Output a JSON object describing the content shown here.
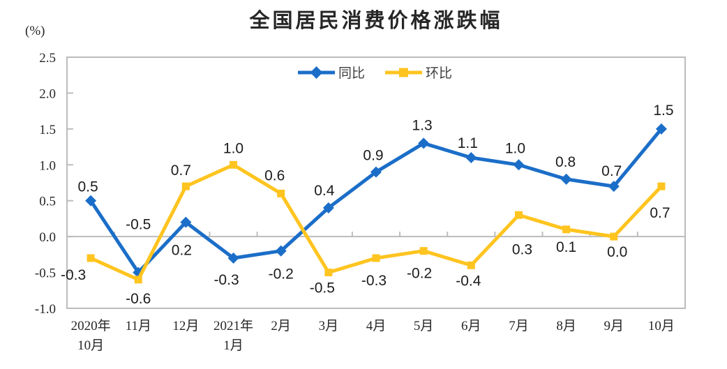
{
  "chart_data": {
    "type": "line",
    "title": "全国居民消费价格涨跌幅",
    "ylabel": "(%)",
    "xlabel": "",
    "ylim": [
      -1.0,
      2.5
    ],
    "y_ticks": [
      2.5,
      2.0,
      1.5,
      1.0,
      0.5,
      0.0,
      -0.5,
      -1.0
    ],
    "grid": false,
    "legend_position": "top-center",
    "axis_color": "#bcbcbc",
    "label_color": "#1c1c1c",
    "categories": [
      "2020年10月",
      "11月",
      "12月",
      "2021年1月",
      "2月",
      "3月",
      "4月",
      "5月",
      "6月",
      "7月",
      "8月",
      "9月",
      "10月"
    ],
    "category_label_lines": [
      [
        "2020年",
        "10月"
      ],
      [
        "11月"
      ],
      [
        "12月"
      ],
      [
        "2021年",
        "1月"
      ],
      [
        "2月"
      ],
      [
        "3月"
      ],
      [
        "4月"
      ],
      [
        "5月"
      ],
      [
        "6月"
      ],
      [
        "7月"
      ],
      [
        "8月"
      ],
      [
        "9月"
      ],
      [
        "10月"
      ]
    ],
    "series": [
      {
        "key": "yoy",
        "name": "同比",
        "color": "#1b6ec8",
        "marker": "diamond",
        "values": [
          0.5,
          -0.5,
          0.2,
          -0.3,
          -0.2,
          0.4,
          0.9,
          1.3,
          1.1,
          1.0,
          0.8,
          0.7,
          1.5
        ],
        "label_offsets": [
          [
            -4,
            -20
          ],
          [
            0,
            -69
          ],
          [
            -6,
            40
          ],
          [
            -10,
            31
          ],
          [
            0,
            33
          ],
          [
            -6,
            -25
          ],
          [
            -4,
            -24
          ],
          [
            -2,
            -26
          ],
          [
            -5,
            -21
          ],
          [
            -5,
            -24
          ],
          [
            -1,
            -25
          ],
          [
            -3,
            -22
          ],
          [
            3,
            -27
          ]
        ]
      },
      {
        "key": "mom",
        "name": "环比",
        "color": "#ffc41f",
        "marker": "square",
        "values": [
          -0.3,
          -0.6,
          0.7,
          1.0,
          0.6,
          -0.5,
          -0.3,
          -0.2,
          -0.4,
          0.3,
          0.1,
          0.0,
          0.7
        ],
        "label_offsets": [
          [
            -25,
            24
          ],
          [
            0,
            27
          ],
          [
            -7,
            -23
          ],
          [
            0,
            -24
          ],
          [
            -9,
            -26
          ],
          [
            -9,
            22
          ],
          [
            -3,
            32
          ],
          [
            -6,
            32
          ],
          [
            -4,
            22
          ],
          [
            5,
            49
          ],
          [
            0,
            25
          ],
          [
            5,
            22
          ],
          [
            -2,
            38
          ]
        ]
      }
    ]
  }
}
